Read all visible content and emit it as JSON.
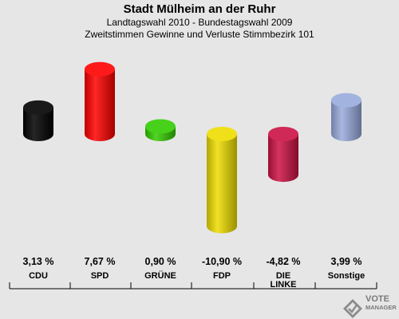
{
  "title": "Stadt Mülheim an der Ruhr",
  "subtitle_1": "Landtagswahl 2010 - Bundestagswahl 2009",
  "subtitle_2": "Zweitstimmen Gewinne und Verluste Stimmbezirk 101",
  "logo": {
    "line1": "VOTE",
    "line2": "MANAGER"
  },
  "chart_data": {
    "type": "bar",
    "categories": [
      "CDU",
      "SPD",
      "GRÜNE",
      "FDP",
      "DIE LINKE",
      "Sonstige"
    ],
    "category_lines": [
      [
        "CDU"
      ],
      [
        "SPD"
      ],
      [
        "GRÜNE"
      ],
      [
        "FDP"
      ],
      [
        "DIE",
        "LINKE"
      ],
      [
        "Sonstige"
      ]
    ],
    "values": [
      3.13,
      7.67,
      0.9,
      -10.9,
      -4.82,
      3.99
    ],
    "value_labels": [
      "3,13 %",
      "7,67 %",
      "0,90 %",
      "-10,90 %",
      "-4,82 %",
      "3,99 %"
    ],
    "colors": [
      "#000000",
      "#ff0000",
      "#33cc00",
      "#eedd00",
      "#cc1144",
      "#99aadd"
    ],
    "bar_style": "cylinder",
    "grid": false,
    "legend": "none"
  }
}
